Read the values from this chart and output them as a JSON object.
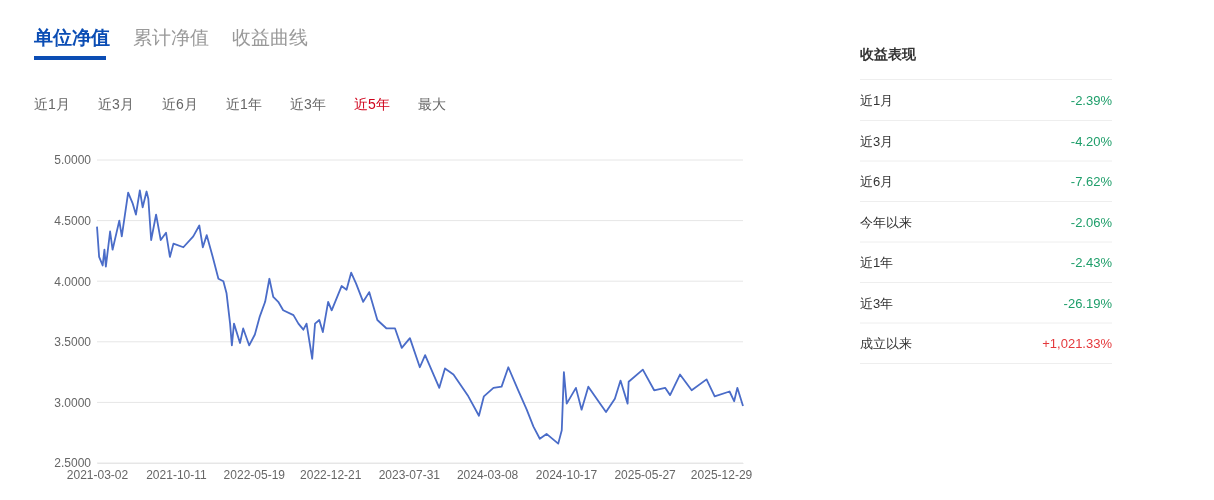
{
  "chart_data": [
    {
      "type": "line",
      "annotations": [
        "单位净值",
        "累计净值",
        "收益曲线",
        "近1月",
        "近3月",
        "近6月",
        "近1年",
        "近3年",
        "近5年",
        "最大"
      ],
      "xlim": [
        "2021-03-02",
        "2026-03-01"
      ],
      "xticks": [
        "2021-03-02",
        "2021-10-11",
        "2022-05-19",
        "2022-12-21",
        "2023-07-31",
        "2024-03-08",
        "2024-10-17",
        "2025-05-27",
        "2025-12-29"
      ],
      "ylim": [
        2.5,
        5
      ],
      "yticks": [
        {
          "value": 2.5,
          "label": "2.5000"
        },
        {
          "value": 3,
          "label": "3.0000"
        },
        {
          "value": 3.5,
          "label": "3.5000"
        },
        {
          "value": 4,
          "label": "4.0000"
        },
        {
          "value": 4.5,
          "label": "4.5000"
        },
        {
          "value": 5,
          "label": "5.0000"
        }
      ],
      "grid": "y",
      "marker": "none",
      "line_style": "solid",
      "series": [
        {
          "color": "#4a6cc8",
          "x": [
            "2021-03-02",
            "2021-03-08",
            "2021-03-18",
            "2021-03-23",
            "2021-03-27",
            "2021-04-08",
            "2021-04-15",
            "2021-05-04",
            "2021-05-11",
            "2021-05-29",
            "2021-06-11",
            "2021-06-20",
            "2021-07-01",
            "2021-07-09",
            "2021-07-20",
            "2021-07-25",
            "2021-08-02",
            "2021-08-16",
            "2021-08-29",
            "2021-09-13",
            "2021-09-24",
            "2021-10-04",
            "2021-11-01",
            "2021-11-29",
            "2021-12-16",
            "2021-12-26",
            "2022-01-06",
            "2022-01-23",
            "2022-02-08",
            "2022-02-22",
            "2022-03-03",
            "2022-03-13",
            "2022-03-18",
            "2022-03-24",
            "2022-04-10",
            "2022-04-19",
            "2022-05-06",
            "2022-05-22",
            "2022-06-05",
            "2022-06-20",
            "2022-07-02",
            "2022-07-13",
            "2022-07-27",
            "2022-08-10",
            "2022-09-08",
            "2022-09-22",
            "2022-10-06",
            "2022-10-15",
            "2022-10-31",
            "2022-11-08",
            "2022-11-20",
            "2022-11-30",
            "2022-12-15",
            "2022-12-25",
            "2023-01-22",
            "2023-02-05",
            "2023-02-18",
            "2023-03-04",
            "2023-03-24",
            "2023-04-10",
            "2023-05-03",
            "2023-05-29",
            "2023-06-22",
            "2023-07-11",
            "2023-08-03",
            "2023-08-31",
            "2023-09-15",
            "2023-10-25",
            "2023-11-10",
            "2023-12-04",
            "2024-01-15",
            "2024-02-14",
            "2024-02-28",
            "2024-03-26",
            "2024-04-18",
            "2024-05-07",
            "2024-06-04",
            "2024-06-28",
            "2024-07-17",
            "2024-08-04",
            "2024-08-23",
            "2024-09-25",
            "2024-10-05",
            "2024-10-11",
            "2024-10-19",
            "2024-11-14",
            "2024-11-30",
            "2024-12-19",
            "2025-01-21",
            "2025-02-07",
            "2025-03-04",
            "2025-03-20",
            "2025-04-09",
            "2025-04-12",
            "2025-05-22",
            "2025-06-23",
            "2025-07-24",
            "2025-08-07",
            "2025-09-04",
            "2025-10-07",
            "2025-11-18",
            "2025-12-11",
            "2026-01-22",
            "2026-02-04",
            "2026-02-13",
            "2026-03-01"
          ],
          "values": [
            4.45,
            4.2,
            4.13,
            4.26,
            4.12,
            4.41,
            4.26,
            4.5,
            4.37,
            4.73,
            4.64,
            4.55,
            4.75,
            4.61,
            4.74,
            4.68,
            4.34,
            4.55,
            4.34,
            4.4,
            4.2,
            4.31,
            4.28,
            4.37,
            4.46,
            4.28,
            4.38,
            4.2,
            4.02,
            4.0,
            3.9,
            3.65,
            3.47,
            3.65,
            3.49,
            3.61,
            3.47,
            3.56,
            3.71,
            3.83,
            4.02,
            3.87,
            3.83,
            3.76,
            3.72,
            3.65,
            3.6,
            3.65,
            3.36,
            3.65,
            3.68,
            3.58,
            3.83,
            3.76,
            3.96,
            3.93,
            4.07,
            3.98,
            3.83,
            3.91,
            3.68,
            3.61,
            3.61,
            3.45,
            3.53,
            3.29,
            3.39,
            3.12,
            3.28,
            3.23,
            3.05,
            2.89,
            3.05,
            3.12,
            3.13,
            3.29,
            3.1,
            2.94,
            2.8,
            2.7,
            2.74,
            2.66,
            2.77,
            3.25,
            2.99,
            3.12,
            2.94,
            3.13,
            2.99,
            2.92,
            3.03,
            3.18,
            2.99,
            3.17,
            3.27,
            3.1,
            3.12,
            3.06,
            3.23,
            3.1,
            3.19,
            3.05,
            3.09,
            3.01,
            3.12,
            2.97
          ]
        }
      ]
    },
    {
      "type": "other",
      "title": "收益表现",
      "categories": [
        "近1月",
        "近3月",
        "近6月",
        "今年以来",
        "近1年",
        "近3年",
        "成立以来"
      ],
      "value_labels": [
        "-2.39%",
        "-4.20%",
        "-7.62%",
        "-2.06%",
        "-2.43%",
        "-26.19%",
        "+1,021.33%"
      ],
      "colors": [
        "#1e9e6a",
        "#1e9e6a",
        "#1e9e6a",
        "#1e9e6a",
        "#1e9e6a",
        "#1e9e6a",
        "#e4393c"
      ]
    }
  ]
}
